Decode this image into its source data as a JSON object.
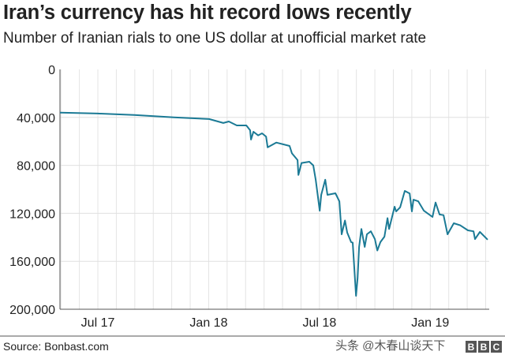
{
  "chart_data": {
    "type": "line",
    "title": "Iran’s currency has hit record lows recently",
    "subtitle": "Number of Iranian rials to one US dollar at unofficial market rate",
    "xlabel": "",
    "ylabel": "",
    "y_inverted": true,
    "ylim": [
      0,
      200000
    ],
    "xlim": [
      2017.329,
      2019.266
    ],
    "y_ticks": [
      {
        "value": 0,
        "label": "0"
      },
      {
        "value": 40000,
        "label": "40,000"
      },
      {
        "value": 80000,
        "label": "80,000"
      },
      {
        "value": 120000,
        "label": "120,000"
      },
      {
        "value": 160000,
        "label": "160,000"
      },
      {
        "value": 200000,
        "label": "200,000"
      }
    ],
    "x_ticks": [
      {
        "value": 2017.5,
        "label": "Jul 17"
      },
      {
        "value": 2018.0,
        "label": "Jan 18"
      },
      {
        "value": 2018.5,
        "label": "Jul 18"
      },
      {
        "value": 2019.0,
        "label": "Jan 19"
      }
    ],
    "grid": true,
    "series": [
      {
        "name": "Rials per US dollar",
        "color": "#1b7a95",
        "x": [
          2017.329,
          2017.5,
          2017.664,
          2017.842,
          2018.002,
          2018.066,
          2018.091,
          2018.127,
          2018.17,
          2018.187,
          2018.191,
          2018.202,
          2018.223,
          2018.241,
          2018.259,
          2018.266,
          2018.305,
          2018.365,
          2018.376,
          2018.401,
          2018.405,
          2018.419,
          2018.454,
          2018.472,
          2018.483,
          2018.501,
          2018.508,
          2018.526,
          2018.536,
          2018.572,
          2018.59,
          2018.6,
          2018.615,
          2018.625,
          2018.643,
          2018.65,
          2018.665,
          2018.672,
          2018.679,
          2018.689,
          2018.704,
          2018.714,
          2018.732,
          2018.75,
          2018.761,
          2018.775,
          2018.793,
          2018.807,
          2018.814,
          2018.839,
          2018.846,
          2018.864,
          2018.885,
          2018.907,
          2018.917,
          2018.924,
          2018.946,
          2018.971,
          2019.01,
          2019.024,
          2019.042,
          2019.06,
          2019.078,
          2019.106,
          2019.135,
          2019.17,
          2019.195,
          2019.202,
          2019.224,
          2019.259
        ],
        "values": [
          36000,
          36800,
          38000,
          40000,
          41400,
          44700,
          43400,
          46700,
          46700,
          50700,
          58500,
          52000,
          55000,
          53300,
          56000,
          65000,
          61000,
          63800,
          70000,
          75600,
          88000,
          78000,
          77000,
          80000,
          92000,
          117800,
          104600,
          92000,
          104600,
          103300,
          110000,
          137500,
          126000,
          136000,
          144000,
          144500,
          188800,
          174000,
          148000,
          133000,
          148000,
          137500,
          135000,
          141500,
          151000,
          144000,
          139500,
          124000,
          133000,
          114500,
          118400,
          115000,
          101300,
          103500,
          118400,
          108600,
          110000,
          117800,
          123000,
          111000,
          121000,
          121500,
          137500,
          128300,
          130000,
          134200,
          135000,
          141500,
          135500,
          142000
        ]
      }
    ]
  },
  "footer": {
    "source": "Source: Bonbast.com",
    "watermark": "头条 @木春山谈天下",
    "logo": [
      "B",
      "B",
      "C"
    ]
  }
}
